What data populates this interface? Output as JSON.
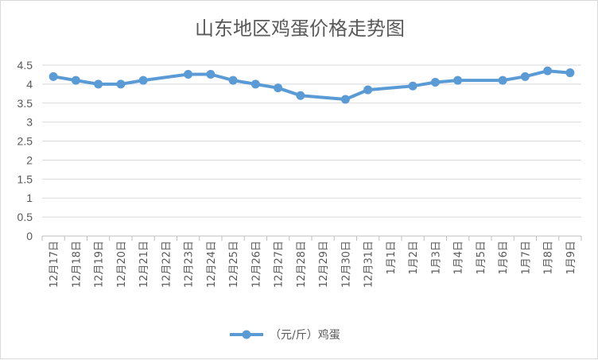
{
  "chart_data": {
    "type": "line",
    "title": "山东地区鸡蛋价格走势图",
    "categories": [
      "12月17日",
      "12月18日",
      "12月19日",
      "12月20日",
      "12月21日",
      "12月22日",
      "12月23日",
      "12月24日",
      "12月25日",
      "12月26日",
      "12月27日",
      "12月28日",
      "12月29日",
      "12月30日",
      "12月31日",
      "1月1日",
      "1月2日",
      "1月3日",
      "1月4日",
      "1月5日",
      "1月6日",
      "1月7日",
      "1月8日",
      "1月9日"
    ],
    "series": [
      {
        "name": "（元/斤）鸡蛋",
        "values": [
          4.2,
          4.1,
          4.0,
          4.0,
          4.1,
          null,
          4.26,
          4.26,
          4.1,
          4.0,
          3.9,
          3.7,
          null,
          3.6,
          3.85,
          null,
          3.95,
          4.05,
          4.1,
          null,
          4.1,
          4.2,
          4.35,
          4.3
        ],
        "color": "#5b9bd5"
      }
    ],
    "yticks": [
      "0",
      "0.5",
      "1",
      "1.5",
      "2",
      "2.5",
      "3",
      "3.5",
      "4",
      "4.5"
    ],
    "ylim": [
      0,
      4.5
    ],
    "grid": true,
    "legend": "bottom"
  }
}
